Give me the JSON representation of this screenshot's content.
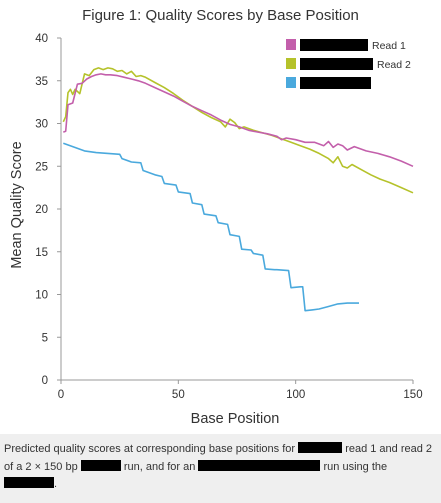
{
  "chart_data": {
    "type": "line",
    "title": "Figure 1: Quality Scores by Base Position",
    "xlabel": "Base Position",
    "ylabel": "Mean Quality Score",
    "xlim": [
      0,
      150
    ],
    "ylim": [
      0,
      40
    ],
    "xticks": [
      0,
      50,
      100,
      150
    ],
    "yticks": [
      0,
      5,
      10,
      15,
      20,
      25,
      30,
      35,
      40
    ],
    "grid": false,
    "legend_position": "top-right",
    "series": [
      {
        "name": "Read 1",
        "legend_label": "Read 1",
        "color": "#c35fab",
        "x": [
          1,
          2,
          3,
          5,
          7,
          9,
          11,
          13,
          15,
          17,
          19,
          21,
          24,
          27,
          30,
          33,
          36,
          40,
          44,
          48,
          52,
          56,
          60,
          64,
          68,
          72,
          76,
          80,
          84,
          88,
          92,
          94,
          96,
          100,
          104,
          108,
          112,
          114,
          116,
          118,
          120,
          122,
          125,
          130,
          135,
          140,
          145,
          150
        ],
        "y": [
          29,
          29.1,
          32.2,
          32.4,
          34.6,
          34.7,
          35.2,
          35.5,
          35.7,
          35.8,
          35.7,
          35.7,
          35.6,
          35.4,
          35.2,
          35,
          34.7,
          34.2,
          33.7,
          33.2,
          32.6,
          32,
          31.5,
          31,
          30.4,
          29.9,
          29.6,
          29.2,
          29,
          28.8,
          28.5,
          28.1,
          28.3,
          28.1,
          27.8,
          27.8,
          27.4,
          27.9,
          27.2,
          27.6,
          27.4,
          26.9,
          27.3,
          26.8,
          26.5,
          26.1,
          25.6,
          25
        ]
      },
      {
        "name": "Read 2",
        "legend_label": "Read 2",
        "color": "#b5c22a",
        "x": [
          1,
          2,
          3,
          4,
          5,
          6,
          8,
          10,
          12,
          14,
          16,
          18,
          20,
          22,
          24,
          26,
          28,
          30,
          32,
          34,
          36,
          40,
          44,
          48,
          52,
          56,
          60,
          64,
          68,
          70,
          72,
          74,
          76,
          78,
          82,
          86,
          90,
          94,
          98,
          102,
          106,
          110,
          114,
          116,
          118,
          120,
          122,
          124,
          128,
          132,
          136,
          140,
          145,
          150
        ],
        "y": [
          30.2,
          30.8,
          33.6,
          34,
          33.4,
          34,
          33.5,
          35.8,
          35.6,
          36.3,
          36.5,
          36.3,
          36.5,
          36.4,
          36.1,
          36.2,
          35.8,
          36.1,
          35.5,
          35.6,
          35.4,
          34.8,
          34.2,
          33.5,
          32.7,
          32,
          31.3,
          30.7,
          30.2,
          29.6,
          30.5,
          30.1,
          29.4,
          29.6,
          29.2,
          28.9,
          28.6,
          28.2,
          27.8,
          27.4,
          27,
          26.5,
          25.9,
          25.4,
          26.1,
          25,
          24.8,
          25.2,
          24.6,
          24,
          23.5,
          23.1,
          22.5,
          21.9
        ]
      },
      {
        "name": "",
        "legend_label": "",
        "color": "#4aa9dd",
        "x": [
          1,
          5,
          10,
          15,
          20,
          25,
          26,
          30,
          34,
          35,
          40,
          43,
          44,
          49,
          50,
          55,
          56,
          60,
          61,
          66,
          67,
          71,
          72,
          76,
          77,
          81,
          82,
          86,
          87,
          91,
          92,
          97,
          98,
          102,
          103,
          104,
          107,
          110,
          114,
          118,
          122,
          127
        ],
        "y": [
          27.7,
          27.3,
          26.8,
          26.6,
          26.5,
          26.4,
          25.9,
          25.5,
          25.4,
          24.5,
          24,
          23.8,
          23,
          22.8,
          22,
          21.8,
          20.7,
          20.5,
          19.4,
          19.2,
          18.4,
          18.2,
          17,
          16.8,
          15.3,
          15.2,
          14.8,
          14.6,
          13,
          12.9,
          12.9,
          12.8,
          10.8,
          10.9,
          10.9,
          8.1,
          8.2,
          8.3,
          8.6,
          8.9,
          9,
          9
        ]
      }
    ]
  },
  "caption": {
    "part1": "Predicted quality scores at corresponding base positions for",
    "part2": "read 1 and read 2 of a 2 × 150 bp",
    "part3": "run, and for an",
    "part4": "run using the",
    "part5": "."
  }
}
